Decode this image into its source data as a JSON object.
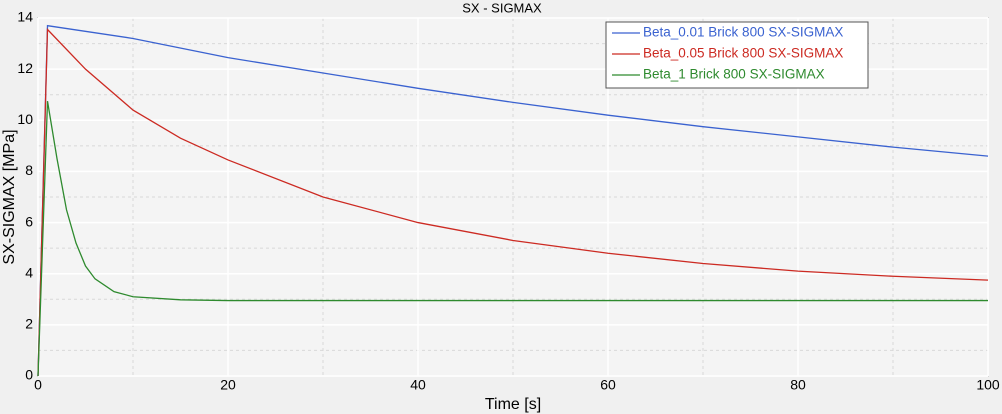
{
  "chart_data": {
    "type": "line",
    "title": "SX -  SIGMAX",
    "x_label": "Time [s]",
    "y_label": "SX-SIGMAX  [MPa]",
    "xlim": [
      0,
      100
    ],
    "xticks": [
      0,
      20,
      40,
      60,
      80,
      100
    ],
    "ylim": [
      0,
      14
    ],
    "yticks": [
      0,
      2,
      4,
      6,
      8,
      10,
      12,
      14
    ],
    "grid": true,
    "legend": "upper right",
    "series": [
      {
        "name": "Beta_0.01 Brick 800 SX-SIGMAX",
        "color": "#3a62d0",
        "x": [
          0,
          1,
          10,
          20,
          30,
          40,
          50,
          60,
          70,
          80,
          90,
          100
        ],
        "values": [
          0,
          13.7,
          13.2,
          12.45,
          11.85,
          11.25,
          10.7,
          10.2,
          9.75,
          9.35,
          8.95,
          8.6
        ]
      },
      {
        "name": "Beta_0.05 Brick 800 SX-SIGMAX",
        "color": "#cc2a22",
        "x": [
          0,
          1,
          5,
          10,
          15,
          20,
          30,
          40,
          50,
          60,
          70,
          80,
          90,
          100
        ],
        "values": [
          0,
          13.55,
          12.0,
          10.4,
          9.3,
          8.45,
          7.0,
          6.0,
          5.3,
          4.8,
          4.4,
          4.1,
          3.9,
          3.75
        ]
      },
      {
        "name": "Beta_1 Brick 800 SX-SIGMAX",
        "color": "#2e8a2e",
        "x": [
          0,
          1,
          2,
          3,
          4,
          5,
          6,
          8,
          10,
          15,
          20,
          100
        ],
        "values": [
          0,
          10.75,
          8.5,
          6.5,
          5.2,
          4.3,
          3.8,
          3.3,
          3.1,
          2.98,
          2.95,
          2.95
        ]
      }
    ]
  }
}
